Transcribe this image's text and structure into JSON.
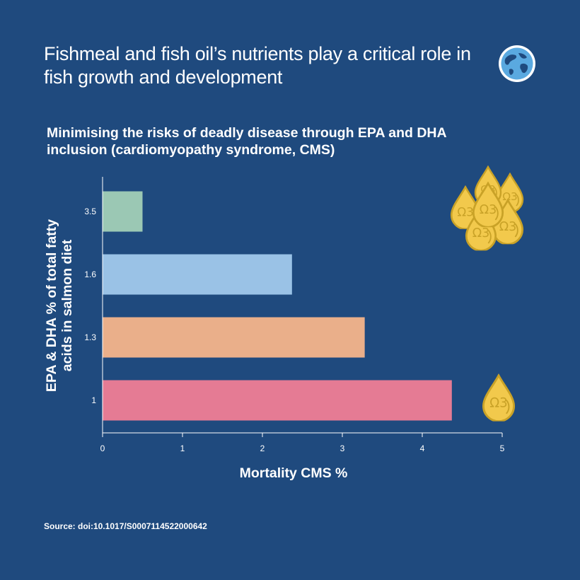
{
  "header": {
    "headline": "Fishmeal and fish oil’s nutrients play a critical role in fish growth and development",
    "globe_icon": "globe-icon"
  },
  "chart_data": {
    "type": "bar",
    "orientation": "horizontal",
    "title": "Minimising the risks of deadly disease through EPA and DHA inclusion (cardiomyopathy syndrome, CMS)",
    "xlabel": "Mortality CMS %",
    "ylabel_lines": [
      "EPA & DHA % of total fatty",
      "acids in salmon diet"
    ],
    "categories": [
      "3.5",
      "1.6",
      "1.3",
      "1"
    ],
    "values": [
      0.5,
      2.37,
      3.28,
      4.37
    ],
    "colors": [
      "#9bc8b4",
      "#9ac2e6",
      "#eaaf8a",
      "#e57b94"
    ],
    "xlim": [
      0,
      5
    ],
    "xticks": [
      "0",
      "1",
      "2",
      "3",
      "4",
      "5"
    ],
    "grid": false,
    "decorations": [
      {
        "icon": "omega3-drop-icon",
        "label": "Ω3",
        "count": 6,
        "beside": "3.5"
      },
      {
        "icon": "omega3-drop-icon",
        "label": "Ω3",
        "count": 1,
        "beside": "1"
      }
    ]
  },
  "footer": {
    "source": "Source: doi:10.1017/S0007114522000642"
  },
  "colors": {
    "background": "#1f4a7e",
    "text": "#ffffff",
    "drop_fill": "#f2c94c",
    "drop_outline": "#c9a227"
  }
}
